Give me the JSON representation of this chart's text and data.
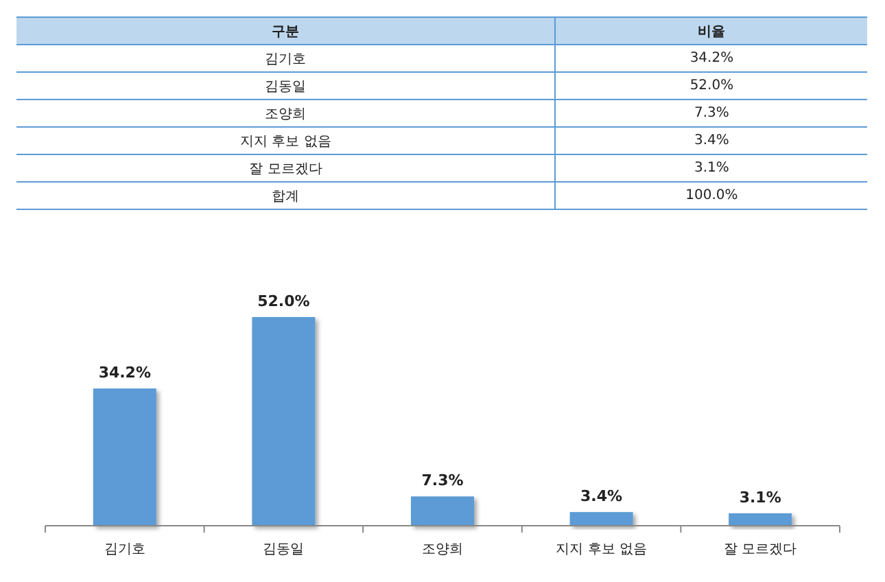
{
  "chart_data": {
    "type": "bar",
    "categories": [
      "김기호",
      "김동일",
      "조양희",
      "지지 후보 없음",
      "잘 모르겠다"
    ],
    "values": [
      34.2,
      52.0,
      7.3,
      3.4,
      3.1
    ],
    "value_labels": [
      "34.2%",
      "52.0%",
      "7.3%",
      "3.4%",
      "3.1%"
    ],
    "color": "#5b9bd5",
    "annotations": [
      "구분",
      "비율",
      "합계",
      "100.0%"
    ]
  }
}
